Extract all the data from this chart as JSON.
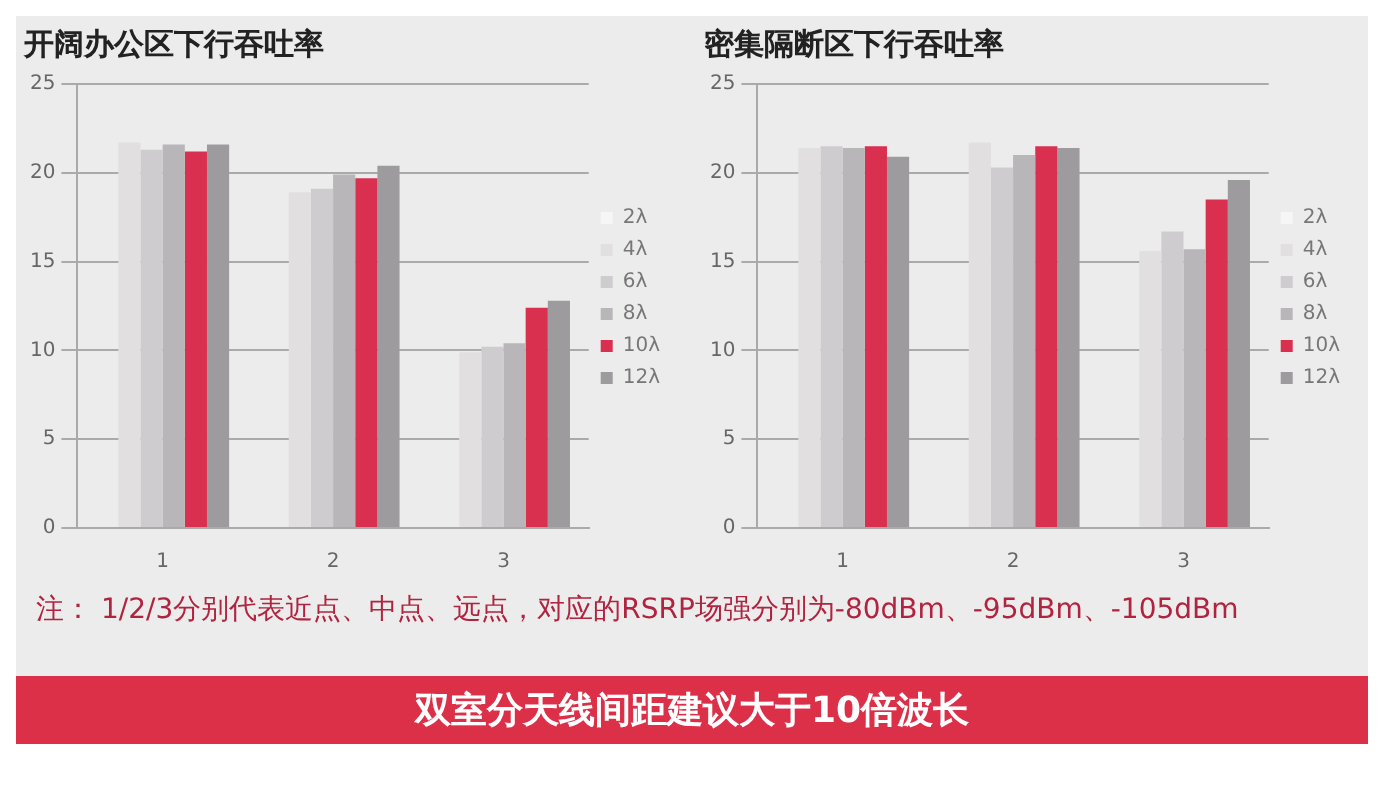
{
  "chart_data": [
    {
      "type": "bar",
      "title": "开阔办公区下行吞吐率",
      "categories": [
        "1",
        "2",
        "3"
      ],
      "ylim": [
        0,
        25
      ],
      "yticks": [
        0,
        5,
        10,
        15,
        20,
        25
      ],
      "grid": "y",
      "legend": "right",
      "series": [
        {
          "name": "2λ",
          "color": "#f6f6f6",
          "values": [
            null,
            null,
            null
          ]
        },
        {
          "name": "4λ",
          "color": "#e2dfe1",
          "values": [
            21.7,
            18.9,
            9.9
          ]
        },
        {
          "name": "6λ",
          "color": "#cfcccf",
          "values": [
            21.3,
            19.1,
            10.2
          ]
        },
        {
          "name": "8λ",
          "color": "#b9b6b9",
          "values": [
            21.6,
            19.9,
            10.4
          ]
        },
        {
          "name": "10λ",
          "color": "#d9304f",
          "values": [
            21.2,
            19.7,
            12.4
          ]
        },
        {
          "name": "12λ",
          "color": "#9e9b9f",
          "values": [
            21.6,
            20.4,
            12.8
          ]
        }
      ]
    },
    {
      "type": "bar",
      "title": "密集隔断区下行吞吐率",
      "categories": [
        "1",
        "2",
        "3"
      ],
      "ylim": [
        0,
        25
      ],
      "yticks": [
        0,
        5,
        10,
        15,
        20,
        25
      ],
      "grid": "y",
      "legend": "right",
      "series": [
        {
          "name": "2λ",
          "color": "#f6f6f6",
          "values": [
            null,
            null,
            null
          ]
        },
        {
          "name": "4λ",
          "color": "#e2dfe1",
          "values": [
            21.4,
            21.7,
            15.6
          ]
        },
        {
          "name": "6λ",
          "color": "#cfcccf",
          "values": [
            21.5,
            20.3,
            16.7
          ]
        },
        {
          "name": "8λ",
          "color": "#b9b6b9",
          "values": [
            21.4,
            21.0,
            15.7
          ]
        },
        {
          "name": "10λ",
          "color": "#d9304f",
          "values": [
            21.5,
            21.5,
            18.5
          ]
        },
        {
          "name": "12λ",
          "color": "#9e9b9f",
          "values": [
            20.9,
            21.4,
            19.6
          ]
        }
      ],
      "annotations": [
        "注： 1/2/3分别代表近点、中点、远点，对应的RSRP场强分别为-80dBm、-95dBm、-105dBm",
        "双室分天线间距建议大于10倍波长"
      ]
    }
  ]
}
